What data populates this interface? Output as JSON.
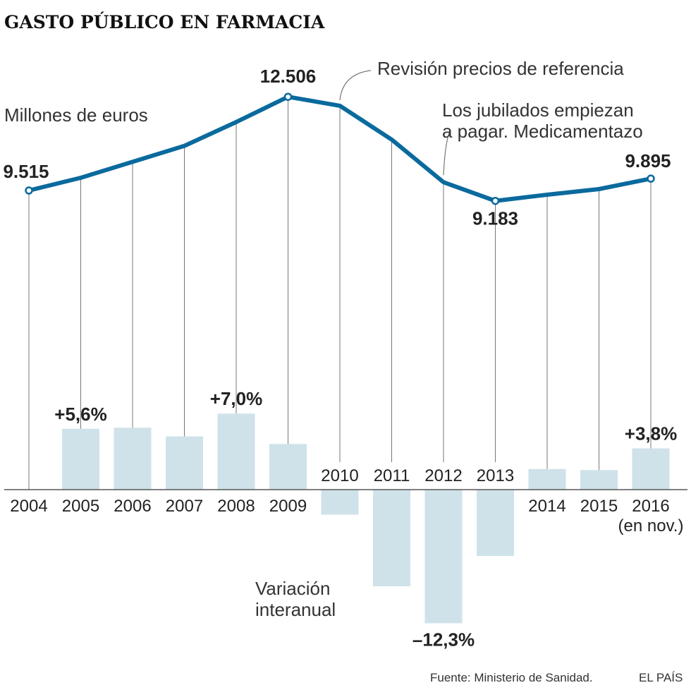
{
  "title": "GASTO PÚBLICO EN FARMACIA",
  "units_label": "Millones de euros",
  "bars_label": [
    "Variación",
    "interanual"
  ],
  "source": "Fuente: Ministerio de Sanidad.",
  "publisher": "EL PAÍS",
  "colors": {
    "line": "#0a6a9e",
    "bar": "#cfe2ea",
    "guide": "#777777",
    "text": "#222222"
  },
  "chart_data": {
    "type": "line+bar",
    "categories": [
      "2004",
      "2005",
      "2006",
      "2007",
      "2008",
      "2009",
      "2010",
      "2011",
      "2012",
      "2013",
      "2014",
      "2015",
      "2016"
    ],
    "category_note": {
      "2016": "(en nov.)"
    },
    "series": [
      {
        "name": "Gasto público en farmacia (millones de euros)",
        "type": "line",
        "values": [
          9515,
          9920,
          10430,
          10940,
          11700,
          12506,
          12220,
          11140,
          9780,
          9183,
          9380,
          9560,
          9895
        ],
        "labeled": {
          "2004": "9.515",
          "2009": "12.506",
          "2013": "9.183",
          "2016": "9.895"
        }
      },
      {
        "name": "Variación interanual (%)",
        "type": "bar",
        "values": [
          null,
          5.6,
          5.7,
          4.9,
          7.0,
          4.2,
          -2.3,
          -8.9,
          -12.3,
          -6.1,
          1.9,
          1.8,
          3.8
        ],
        "labeled": {
          "2005": "+5,6%",
          "2008": "+7,0%",
          "2012": "–12,3%",
          "2016": "+3,8%"
        }
      }
    ],
    "annotations": [
      {
        "year": "2010",
        "text": "Revisión precios de referencia"
      },
      {
        "year": "2012",
        "text": [
          "Los jubilados empiezan",
          "a pagar. Medicamentazo"
        ]
      }
    ]
  }
}
